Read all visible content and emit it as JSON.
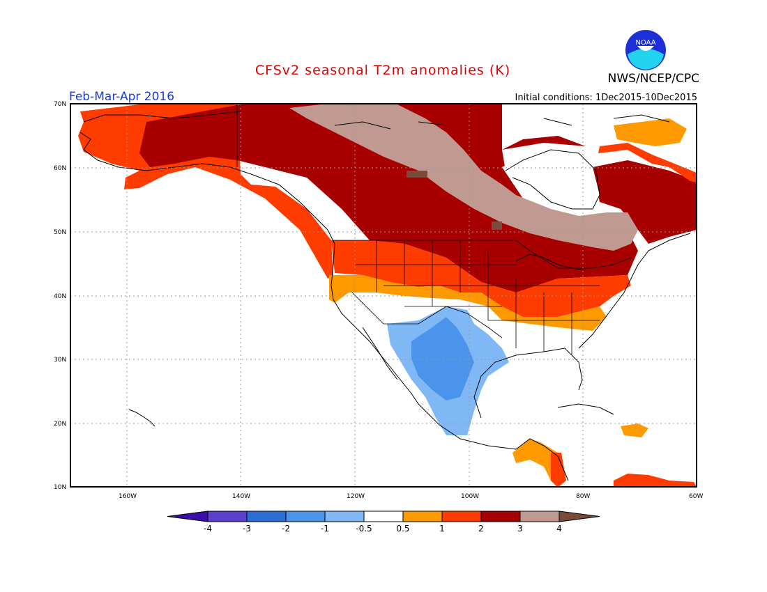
{
  "header": {
    "title": "CFSv2 seasonal T2m anomalies (K)",
    "agency": "NWS/NCEP/CPC",
    "season": "Feb-Mar-Apr 2016",
    "initial_conditions": "Initial conditions: 1Dec2015-10Dec2015",
    "logo_text": "NOAA"
  },
  "axes": {
    "lat_labels": [
      "70N",
      "60N",
      "50N",
      "40N",
      "30N",
      "20N",
      "10N"
    ],
    "lon_labels": [
      "160W",
      "140W",
      "120W",
      "100W",
      "80W",
      "60W"
    ]
  },
  "colorbar": {
    "ticks": [
      "-4",
      "-3",
      "-2",
      "-1",
      "-0.5",
      "0.5",
      "1",
      "2",
      "3",
      "4"
    ],
    "colors": [
      "#3a0fa8",
      "#5a3fd0",
      "#2b6fd6",
      "#4a94ec",
      "#7fb8f4",
      "#ffffff",
      "#ff9900",
      "#ff3c00",
      "#a80000",
      "#c09a90",
      "#7a4a3a"
    ]
  },
  "colors": {
    "title": "#e00000",
    "season": "#1a3cd6",
    "land_white": "#ffffff"
  }
}
